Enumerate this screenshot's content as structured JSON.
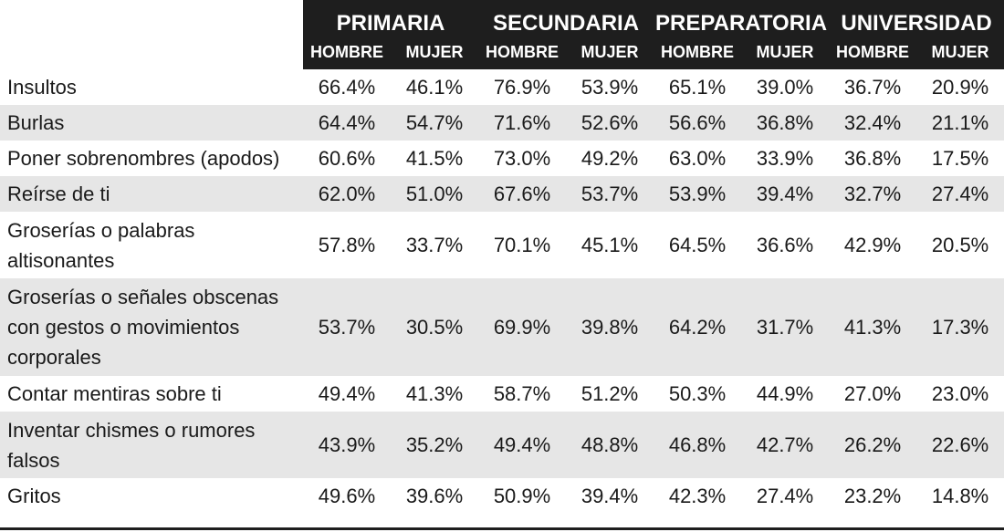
{
  "levels": [
    "PRIMARIA",
    "SECUNDARIA",
    "PREPARATORIA",
    "UNIVERSIDAD"
  ],
  "sexes": [
    "HOMBRE",
    "MUJER"
  ],
  "rows": [
    {
      "label": "Insultos",
      "values": [
        "66.4%",
        "46.1%",
        "76.9%",
        "53.9%",
        "65.1%",
        "39.0%",
        "36.7%",
        "20.9%"
      ]
    },
    {
      "label": "Burlas",
      "values": [
        "64.4%",
        "54.7%",
        "71.6%",
        "52.6%",
        "56.6%",
        "36.8%",
        "32.4%",
        "21.1%"
      ]
    },
    {
      "label": "Poner sobrenombres (apodos)",
      "values": [
        "60.6%",
        "41.5%",
        "73.0%",
        "49.2%",
        "63.0%",
        "33.9%",
        "36.8%",
        "17.5%"
      ]
    },
    {
      "label": "Reírse de ti",
      "values": [
        "62.0%",
        "51.0%",
        "67.6%",
        "53.7%",
        "53.9%",
        "39.4%",
        "32.7%",
        "27.4%"
      ]
    },
    {
      "label": "Groserías o palabras altisonantes",
      "values": [
        "57.8%",
        "33.7%",
        "70.1%",
        "45.1%",
        "64.5%",
        "36.6%",
        "42.9%",
        "20.5%"
      ]
    },
    {
      "label": "Groserías o señales obscenas con gestos o movimientos corporales",
      "values": [
        "53.7%",
        "30.5%",
        "69.9%",
        "39.8%",
        "64.2%",
        "31.7%",
        "41.3%",
        "17.3%"
      ]
    },
    {
      "label": "Contar mentiras sobre ti",
      "values": [
        "49.4%",
        "41.3%",
        "58.7%",
        "51.2%",
        "50.3%",
        "44.9%",
        "27.0%",
        "23.0%"
      ]
    },
    {
      "label": "Inventar chismes o rumores falsos",
      "values": [
        "43.9%",
        "35.2%",
        "49.4%",
        "48.8%",
        "46.8%",
        "42.7%",
        "26.2%",
        "22.6%"
      ]
    },
    {
      "label": "Gritos",
      "values": [
        "49.6%",
        "39.6%",
        "50.9%",
        "39.4%",
        "42.3%",
        "27.4%",
        "23.2%",
        "14.8%"
      ]
    }
  ]
}
